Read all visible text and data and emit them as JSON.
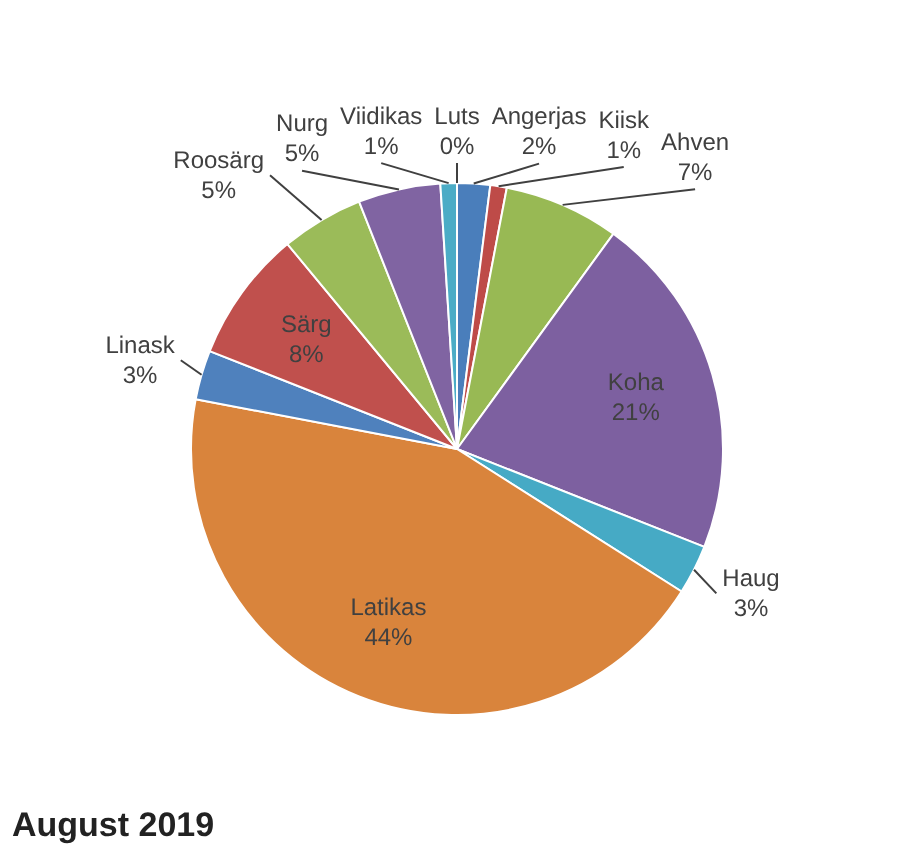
{
  "chart_data": {
    "type": "pie",
    "title": "August 2019",
    "categories": [
      "Luts",
      "Angerjas",
      "Kiisk",
      "Ahven",
      "Koha",
      "Haug",
      "Latikas",
      "Linask",
      "Särg",
      "Roosärg",
      "Nurg",
      "Viidikas"
    ],
    "values": [
      0,
      2,
      1,
      7,
      21,
      3,
      44,
      3,
      8,
      5,
      5,
      1
    ],
    "value_labels": [
      "0%",
      "2%",
      "1%",
      "7%",
      "21%",
      "3%",
      "44%",
      "3%",
      "8%",
      "5%",
      "5%",
      "1%"
    ],
    "colors": [
      "#7f7f7f",
      "#4a7ebb",
      "#be4b48",
      "#98b954",
      "#7d60a0",
      "#46aac5",
      "#d9843c",
      "#4f81bd",
      "#c0504d",
      "#9bbb59",
      "#8064a2",
      "#4bacc6"
    ],
    "legend": false
  }
}
